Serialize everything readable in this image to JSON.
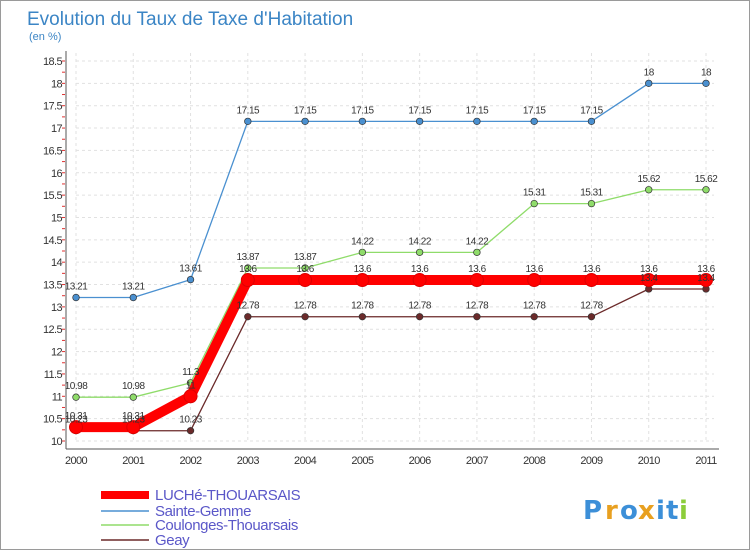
{
  "chart_data": {
    "type": "line",
    "title": "Evolution du Taux de Taxe d'Habitation",
    "subtitle": "(en %)",
    "xlabel": "",
    "ylabel": "",
    "categories": [
      "2000",
      "2001",
      "2002",
      "2003",
      "2004",
      "2005",
      "2006",
      "2007",
      "2008",
      "2009",
      "2010",
      "2011"
    ],
    "ylim": [
      10,
      18.5
    ],
    "yticks": [
      10,
      10.5,
      11,
      11.5,
      12,
      12.5,
      13,
      13.5,
      14,
      14.5,
      15,
      15.5,
      16,
      16.5,
      17,
      17.5,
      18,
      18.5
    ],
    "grid": true,
    "legend_position": "bottom-left",
    "series": [
      {
        "name": "Sainte-Gemme",
        "color": "#4a90d0",
        "values": [
          13.21,
          13.21,
          13.61,
          17.15,
          17.15,
          17.15,
          17.15,
          17.15,
          17.15,
          17.15,
          18,
          18
        ],
        "labels": [
          "13.21",
          "13.21",
          "13.61",
          "17.15",
          "17.15",
          "17.15",
          "17.15",
          "17.15",
          "17.15",
          "17.15",
          "18",
          "18"
        ]
      },
      {
        "name": "Coulonges-Thouarsais",
        "color": "#8fdc6a",
        "values": [
          10.98,
          10.98,
          11.3,
          13.87,
          13.87,
          14.22,
          14.22,
          14.22,
          15.31,
          15.31,
          15.62,
          15.62
        ],
        "labels": [
          "10.98",
          "10.98",
          "11.3",
          "13.87",
          "13.87",
          "14.22",
          "14.22",
          "14.22",
          "15.31",
          "15.31",
          "15.62",
          "15.62"
        ]
      },
      {
        "name": "Geay",
        "color": "#6b2a2a",
        "values": [
          10.23,
          10.23,
          10.23,
          12.78,
          12.78,
          12.78,
          12.78,
          12.78,
          12.78,
          12.78,
          13.4,
          13.4
        ],
        "labels": [
          "10.23",
          "10.23",
          "10.23",
          "12.78",
          "12.78",
          "12.78",
          "12.78",
          "12.78",
          "12.78",
          "12.78",
          "13.4",
          "13.4"
        ]
      },
      {
        "name": "LUCHé-THOUARSAIS",
        "color": "#ff0000",
        "values": [
          10.31,
          10.31,
          11,
          13.6,
          13.6,
          13.6,
          13.6,
          13.6,
          13.6,
          13.6,
          13.6,
          13.6
        ],
        "labels": [
          "10.31",
          "10.31",
          "11",
          "13.6",
          "13.6",
          "13.6",
          "13.6",
          "13.6",
          "13.6",
          "13.6",
          "13.6",
          "13.6"
        ]
      }
    ],
    "legend": [
      "LUCHé-THOUARSAIS",
      "Sainte-Gemme",
      "Coulonges-Thouarsais",
      "Geay"
    ]
  },
  "logo": {
    "letters": [
      "P",
      "r",
      "o",
      "x",
      "i",
      "t",
      "i"
    ],
    "colors": [
      "#3c8fd8",
      "#e8a020",
      "#3c8fd8",
      "#e8a020",
      "#3c8fd8",
      "#3c8fd8",
      "#8ccd3a"
    ]
  }
}
